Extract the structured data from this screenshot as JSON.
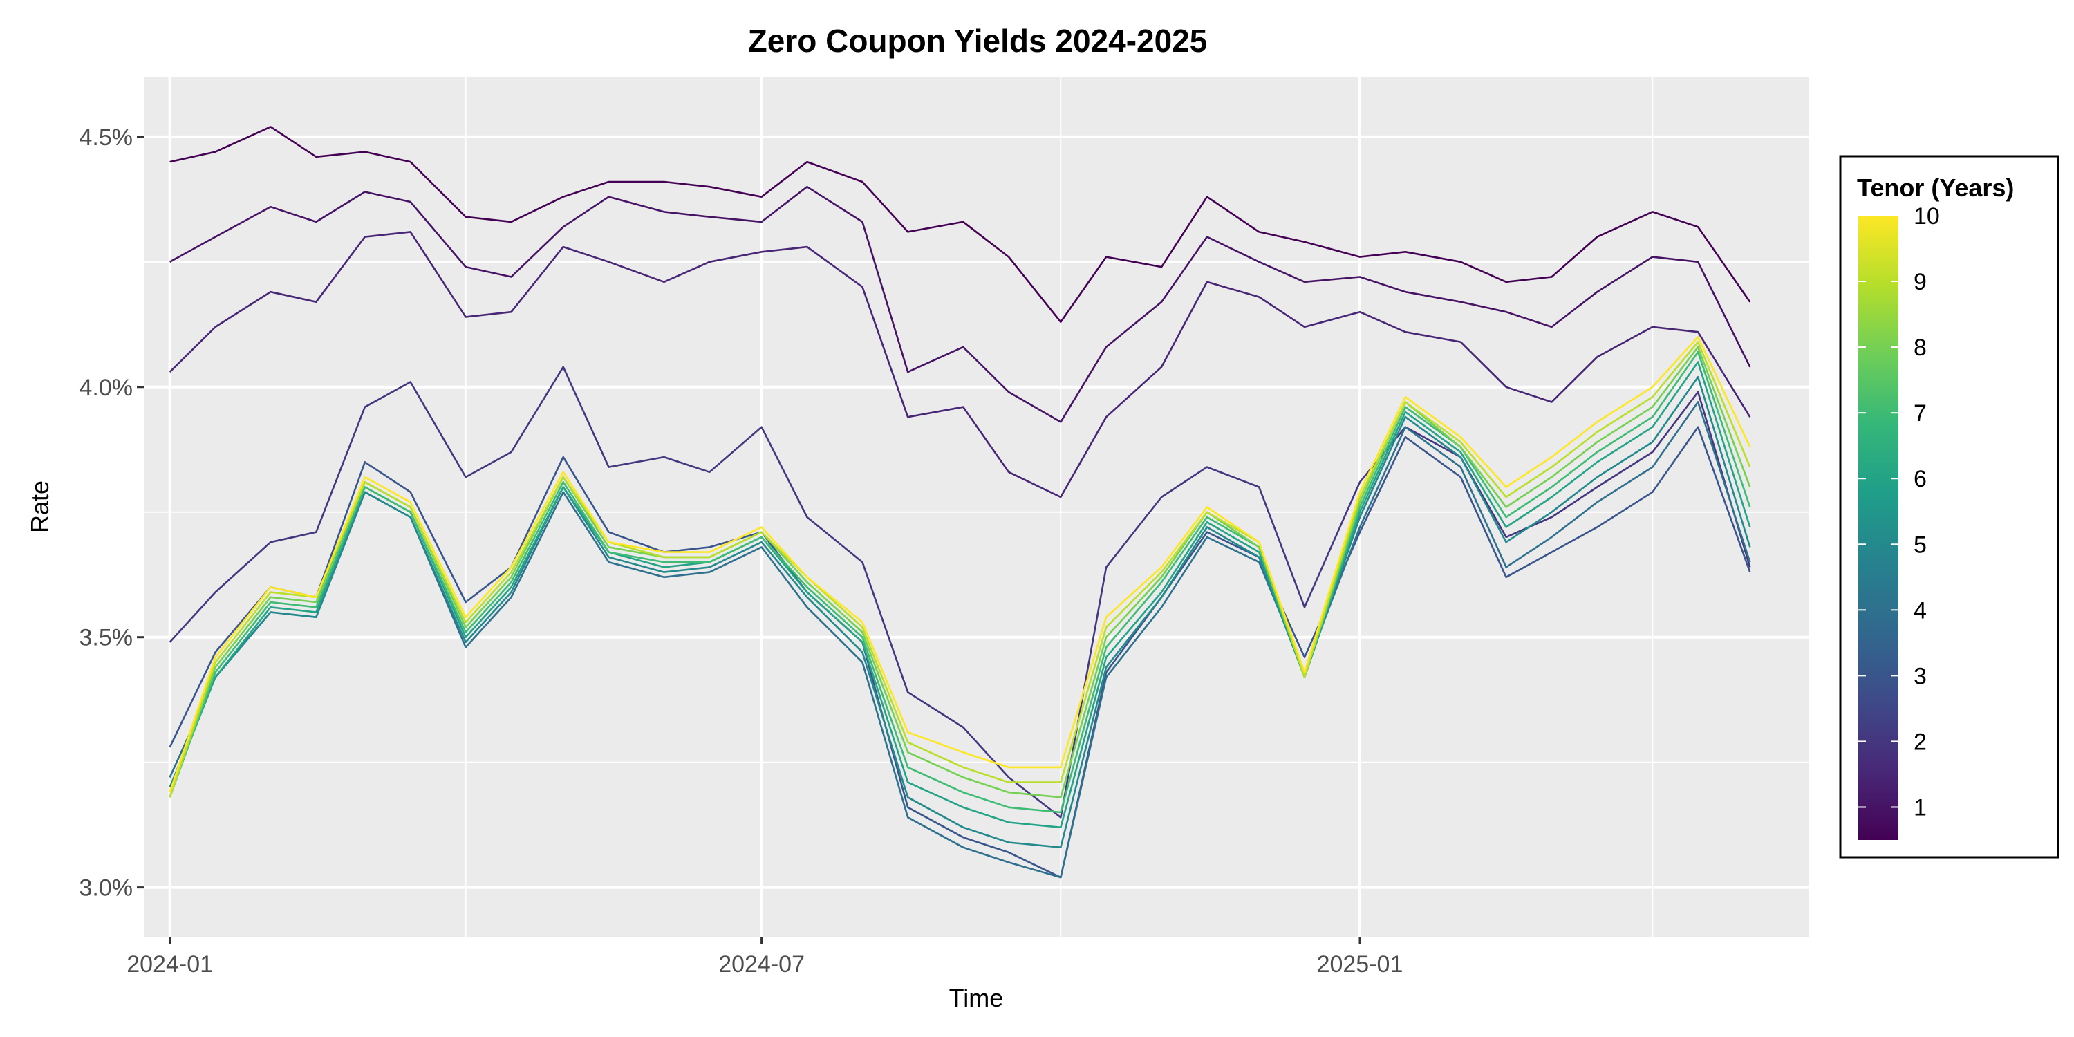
{
  "chart_data": {
    "type": "line",
    "title": "Zero Coupon Yields 2024-2025",
    "xlabel": "Time",
    "ylabel": "Rate",
    "x_range": [
      "2023-12-24",
      "2025-05-19"
    ],
    "ylim": [
      2.9,
      4.62
    ],
    "y_ticks": [
      3.0,
      3.5,
      4.0,
      4.5
    ],
    "y_tick_labels": [
      "3.0%",
      "3.5%",
      "4.0%",
      "4.5%"
    ],
    "x_ticks": [
      "2024-01-01",
      "2024-07-01",
      "2025-01-01"
    ],
    "x_tick_labels": [
      "2024-01",
      "2024-07",
      "2025-01"
    ],
    "x_minor_ticks": [
      "2024-04-01",
      "2024-10-01",
      "2025-04-01"
    ],
    "y_minor_ticks": [
      3.25,
      3.75,
      4.25
    ],
    "panel_background": "#ebebeb",
    "grid": true,
    "legend": {
      "title": "Tenor (Years)",
      "placement": "right",
      "range": [
        0.5,
        10
      ],
      "breaks": [
        1,
        2,
        3,
        4,
        5,
        6,
        7,
        8,
        9,
        10
      ],
      "colors": [
        "#440154",
        "#482878",
        "#3e4a89",
        "#31688e",
        "#26828e",
        "#1f9e89",
        "#35b779",
        "#6ece58",
        "#b5de2b",
        "#fde725"
      ]
    },
    "dates": [
      "2024-01-01",
      "2024-01-15",
      "2024-02-01",
      "2024-02-15",
      "2024-03-01",
      "2024-03-15",
      "2024-04-01",
      "2024-04-15",
      "2024-05-01",
      "2024-05-15",
      "2024-06-01",
      "2024-06-15",
      "2024-07-01",
      "2024-07-15",
      "2024-08-01",
      "2024-08-15",
      "2024-09-01",
      "2024-09-15",
      "2024-10-01",
      "2024-10-15",
      "2024-11-01",
      "2024-11-15",
      "2024-12-01",
      "2024-12-15",
      "2025-01-01",
      "2025-01-15",
      "2025-02-01",
      "2025-02-15",
      "2025-03-01",
      "2025-03-15",
      "2025-04-01",
      "2025-04-15",
      "2025-05-01"
    ],
    "series": [
      {
        "tenor": 0.5,
        "values": [
          4.45,
          4.47,
          4.52,
          4.46,
          4.47,
          4.45,
          4.34,
          4.33,
          4.38,
          4.41,
          4.41,
          4.4,
          4.38,
          4.45,
          4.41,
          4.31,
          4.33,
          4.26,
          4.13,
          4.26,
          4.24,
          4.38,
          4.31,
          4.29,
          4.26,
          4.27,
          4.25,
          4.21,
          4.22,
          4.3,
          4.35,
          4.32,
          4.17
        ]
      },
      {
        "tenor": 1,
        "values": [
          4.25,
          4.3,
          4.36,
          4.33,
          4.39,
          4.37,
          4.24,
          4.22,
          4.32,
          4.38,
          4.35,
          4.34,
          4.33,
          4.4,
          4.33,
          4.03,
          4.08,
          3.99,
          3.93,
          4.08,
          4.17,
          4.3,
          4.25,
          4.21,
          4.22,
          4.19,
          4.17,
          4.15,
          4.12,
          4.19,
          4.26,
          4.25,
          4.04
        ]
      },
      {
        "tenor": 1.5,
        "values": [
          4.03,
          4.12,
          4.19,
          4.17,
          4.3,
          4.31,
          4.14,
          4.15,
          4.28,
          4.25,
          4.21,
          4.25,
          4.27,
          4.28,
          4.2,
          3.94,
          3.96,
          3.83,
          3.78,
          3.94,
          4.04,
          4.21,
          4.18,
          4.12,
          4.15,
          4.11,
          4.09,
          4.0,
          3.97,
          4.06,
          4.12,
          4.11,
          3.94
        ]
      },
      {
        "tenor": 2,
        "values": [
          3.49,
          3.59,
          3.69,
          3.71,
          3.96,
          4.01,
          3.82,
          3.87,
          4.04,
          3.84,
          3.86,
          3.83,
          3.92,
          3.74,
          3.65,
          3.39,
          3.32,
          3.22,
          3.14,
          3.64,
          3.78,
          3.84,
          3.8,
          3.56,
          3.81,
          3.92,
          3.86,
          3.7,
          3.74,
          3.8,
          3.87,
          3.99,
          3.64
        ]
      },
      {
        "tenor": 3,
        "values": [
          3.28,
          3.47,
          3.6,
          3.58,
          3.85,
          3.79,
          3.57,
          3.64,
          3.86,
          3.71,
          3.67,
          3.68,
          3.71,
          3.59,
          3.49,
          3.16,
          3.1,
          3.07,
          3.02,
          3.43,
          3.58,
          3.71,
          3.66,
          3.46,
          3.71,
          3.9,
          3.82,
          3.62,
          3.67,
          3.72,
          3.79,
          3.92,
          3.63
        ]
      },
      {
        "tenor": 4,
        "values": [
          3.22,
          3.42,
          3.55,
          3.54,
          3.79,
          3.74,
          3.48,
          3.58,
          3.79,
          3.65,
          3.62,
          3.63,
          3.68,
          3.56,
          3.45,
          3.14,
          3.08,
          3.05,
          3.02,
          3.42,
          3.56,
          3.7,
          3.65,
          3.43,
          3.72,
          3.92,
          3.84,
          3.64,
          3.7,
          3.77,
          3.84,
          3.97,
          3.65
        ]
      },
      {
        "tenor": 5,
        "values": [
          3.2,
          3.42,
          3.55,
          3.54,
          3.79,
          3.74,
          3.49,
          3.59,
          3.8,
          3.66,
          3.63,
          3.64,
          3.69,
          3.58,
          3.47,
          3.18,
          3.12,
          3.09,
          3.08,
          3.44,
          3.58,
          3.72,
          3.66,
          3.42,
          3.74,
          3.94,
          3.86,
          3.69,
          3.75,
          3.82,
          3.89,
          4.02,
          3.68
        ]
      },
      {
        "tenor": 6,
        "values": [
          3.19,
          3.42,
          3.56,
          3.55,
          3.8,
          3.75,
          3.5,
          3.6,
          3.8,
          3.67,
          3.64,
          3.65,
          3.7,
          3.59,
          3.49,
          3.21,
          3.16,
          3.13,
          3.12,
          3.46,
          3.59,
          3.73,
          3.67,
          3.42,
          3.75,
          3.95,
          3.87,
          3.72,
          3.78,
          3.85,
          3.92,
          4.05,
          3.72
        ]
      },
      {
        "tenor": 7,
        "values": [
          3.18,
          3.43,
          3.57,
          3.56,
          3.8,
          3.75,
          3.51,
          3.61,
          3.81,
          3.67,
          3.65,
          3.65,
          3.7,
          3.6,
          3.5,
          3.24,
          3.19,
          3.16,
          3.15,
          3.48,
          3.61,
          3.74,
          3.68,
          3.42,
          3.76,
          3.96,
          3.88,
          3.74,
          3.8,
          3.87,
          3.94,
          4.07,
          3.76
        ]
      },
      {
        "tenor": 8,
        "values": [
          3.18,
          3.44,
          3.58,
          3.57,
          3.81,
          3.76,
          3.52,
          3.62,
          3.82,
          3.68,
          3.66,
          3.66,
          3.71,
          3.61,
          3.51,
          3.27,
          3.22,
          3.19,
          3.18,
          3.5,
          3.62,
          3.75,
          3.68,
          3.42,
          3.77,
          3.97,
          3.88,
          3.76,
          3.82,
          3.89,
          3.96,
          4.08,
          3.8
        ]
      },
      {
        "tenor": 9,
        "values": [
          3.18,
          3.45,
          3.59,
          3.58,
          3.81,
          3.76,
          3.53,
          3.63,
          3.82,
          3.69,
          3.66,
          3.66,
          3.71,
          3.62,
          3.52,
          3.29,
          3.24,
          3.21,
          3.21,
          3.52,
          3.63,
          3.75,
          3.69,
          3.42,
          3.78,
          3.97,
          3.89,
          3.78,
          3.84,
          3.91,
          3.98,
          4.09,
          3.84
        ]
      },
      {
        "tenor": 10,
        "values": [
          3.19,
          3.46,
          3.6,
          3.58,
          3.82,
          3.77,
          3.54,
          3.64,
          3.83,
          3.69,
          3.67,
          3.67,
          3.72,
          3.62,
          3.53,
          3.31,
          3.27,
          3.24,
          3.24,
          3.54,
          3.64,
          3.76,
          3.69,
          3.43,
          3.79,
          3.98,
          3.9,
          3.8,
          3.86,
          3.93,
          4.0,
          4.1,
          3.88
        ]
      }
    ]
  }
}
